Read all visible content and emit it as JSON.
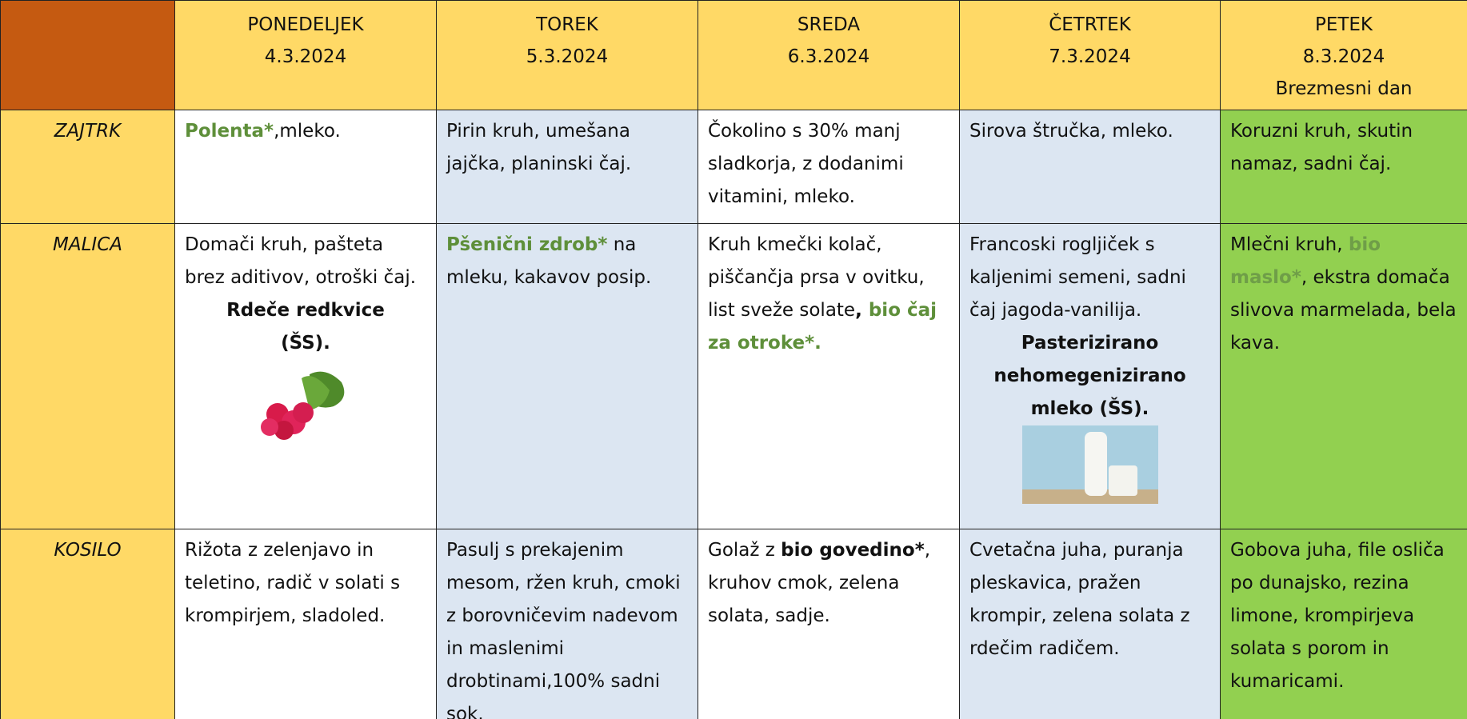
{
  "days": [
    {
      "name": "PONEDELJEK",
      "date": "4.3.2024"
    },
    {
      "name": "TOREK",
      "date": "5.3.2024"
    },
    {
      "name": "SREDA",
      "date": "6.3.2024"
    },
    {
      "name": "ČETRTEK",
      "date": "7.3.2024"
    },
    {
      "name": "PETEK",
      "date": "8.3.2024",
      "note": "Brezmesni dan"
    }
  ],
  "rows": [
    {
      "label": "ZAJTRK",
      "cells": [
        [
          "Polenta*",
          ",mleko."
        ],
        [
          "Pirin kruh, umešana jajčka, planinski čaj."
        ],
        [
          "Čokolino s 30% manj sladkorja, z dodanimi vitamini, mleko."
        ],
        [
          "Sirova štručka, mleko."
        ],
        [
          "Koruzni kruh, skutin namaz, sadni čaj."
        ]
      ]
    },
    {
      "label": "MALICA",
      "cells": [
        [
          "Domači kruh, pašteta brez aditivov, otroški čaj.",
          "Rdeče redkvice (ŠS)."
        ],
        [
          "Pšenični zdrob*",
          " na mleku, kakavov posip."
        ],
        [
          "Kruh kmečki kolač, piščančja prsa v ovitku, list sveže solate",
          ", ",
          "bio čaj za otroke*."
        ],
        [
          "Francoski rogljiček s kaljenimi semeni, sadni čaj jagoda-vanilija.",
          "Pasterizirano nehomegenizirano mleko (ŠS)."
        ],
        [
          "Mlečni kruh, ",
          "bio maslo*",
          ", ekstra domača slivova marmelada, bela kava."
        ]
      ]
    },
    {
      "label": "KOSILO",
      "cells": [
        [
          "Rižota z zelenjavo in teletino, radič v solati s krompirjem, sladoled."
        ],
        [
          "Pasulj s prekajenim mesom, ržen kruh, cmoki z borovničevim nadevom in  maslenimi drobtinami,100% sadni sok."
        ],
        [
          "Golaž z ",
          "bio govedino*",
          ", kruhov cmok, zelena  solata, sadje."
        ],
        [
          "Cvetačna juha, puranja pleskavica, pražen krompir, zelena solata z rdečim radičem."
        ],
        [
          "Gobova juha, file osliča po dunajsko, rezina limone, krompirjeva solata s porom in kumaricami."
        ]
      ]
    }
  ]
}
